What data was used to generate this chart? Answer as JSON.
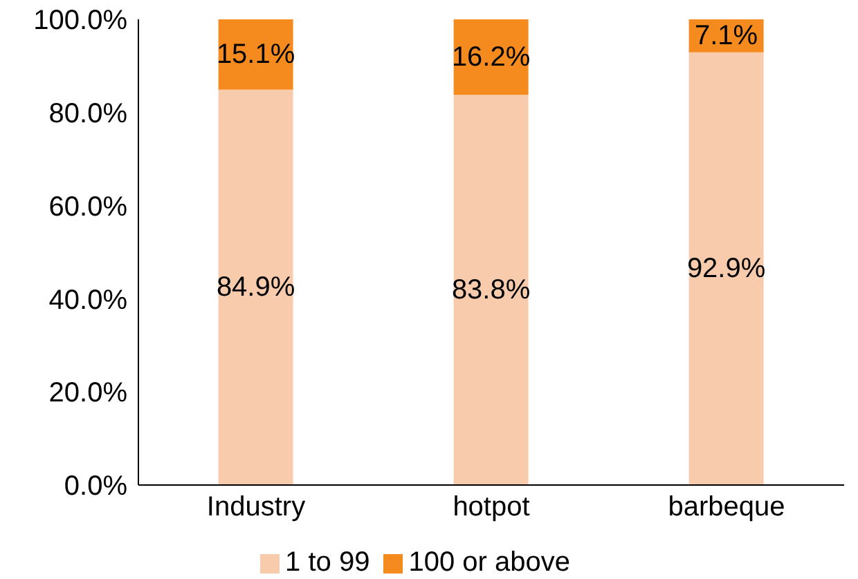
{
  "chart_data": {
    "type": "bar",
    "stacked": true,
    "categories": [
      "Industry",
      "hotpot",
      "barbeque"
    ],
    "series": [
      {
        "name": "1 to 99",
        "color": "#f8cbad",
        "values": [
          84.9,
          83.8,
          92.9
        ],
        "value_labels": [
          "84.9%",
          "83.8%",
          "92.9%"
        ]
      },
      {
        "name": "100 or above",
        "color": "#f58b1f",
        "values": [
          15.1,
          16.2,
          7.1
        ],
        "value_labels": [
          "15.1%",
          "16.2%",
          "7.1%"
        ]
      }
    ],
    "ylim": [
      0,
      100
    ],
    "yticks": [
      {
        "value": 0,
        "label": "0.0%"
      },
      {
        "value": 20,
        "label": "20.0%"
      },
      {
        "value": 40,
        "label": "40.0%"
      },
      {
        "value": 60,
        "label": "60.0%"
      },
      {
        "value": 80,
        "label": "80.0%"
      },
      {
        "value": 100,
        "label": "100.0%"
      }
    ],
    "grid": false,
    "legend": "bottom"
  }
}
